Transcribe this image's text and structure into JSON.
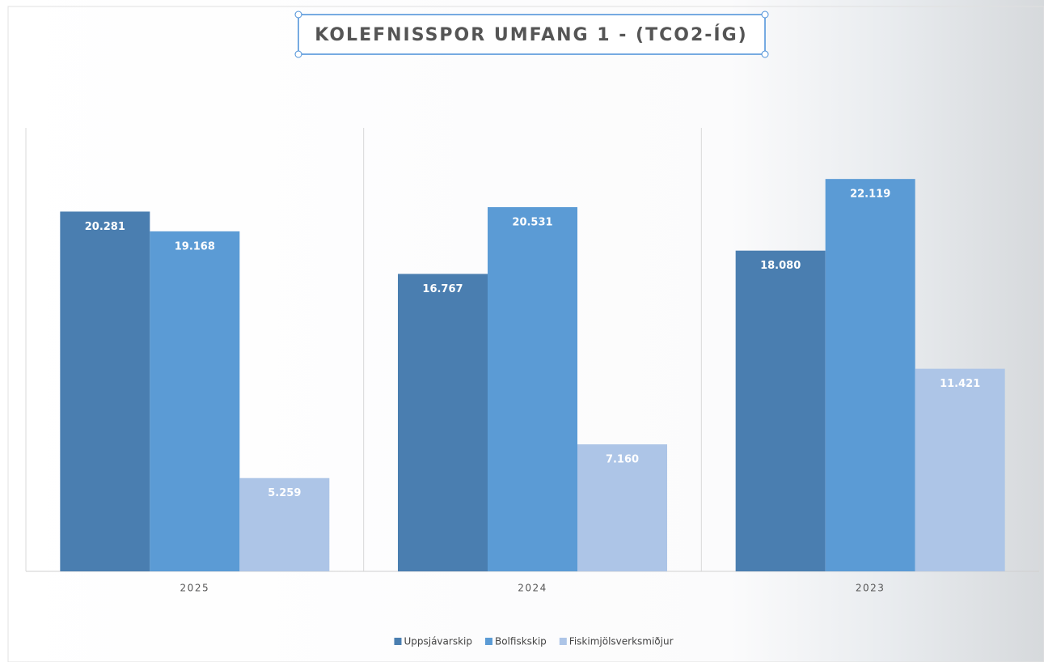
{
  "chart_data": {
    "type": "bar",
    "title": "KOLEFNISSPOR UMFANG 1 - (TCO2-ÍG)",
    "categories": [
      "2025",
      "2024",
      "2023"
    ],
    "series": [
      {
        "name": "Uppsjávarskip",
        "color": "#4a7eb0",
        "values": [
          20281,
          16767,
          18080
        ],
        "value_labels": [
          "20.281",
          "16.767",
          "18.080"
        ]
      },
      {
        "name": "Bolfiskskip",
        "color": "#5b9bd5",
        "values": [
          19168,
          20531,
          22119
        ],
        "value_labels": [
          "19.168",
          "20.531",
          "22.119"
        ]
      },
      {
        "name": "Fiskimjölsverksmiðjur",
        "color": "#adc5e7",
        "values": [
          5259,
          7160,
          11421
        ],
        "value_labels": [
          "5.259",
          "7.160",
          "11.421"
        ]
      }
    ],
    "ylim": [
      0,
      25000
    ]
  }
}
